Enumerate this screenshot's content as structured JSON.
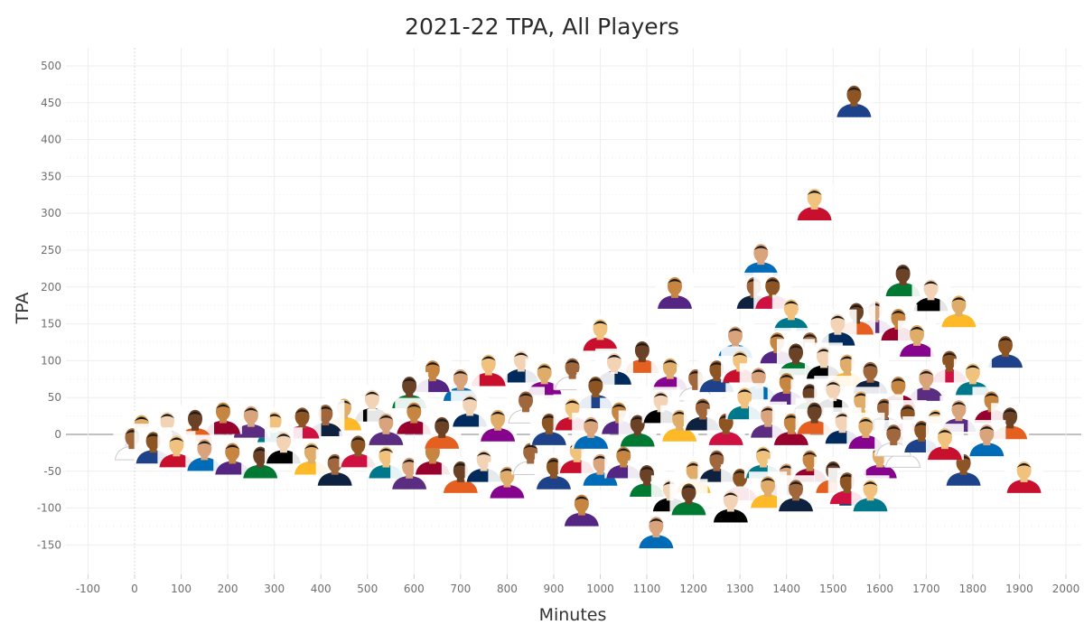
{
  "chart_data": {
    "type": "scatter",
    "title": "2021-22 TPA, All Players",
    "xlabel": "Minutes",
    "ylabel": "TPA",
    "xlim": [
      -100,
      2000
    ],
    "ylim": [
      -150,
      500
    ],
    "x_ticks": [
      "-100",
      "0",
      "100",
      "200",
      "300",
      "400",
      "500",
      "600",
      "700",
      "800",
      "900",
      "1000",
      "1100",
      "1200",
      "1300",
      "1400",
      "1500",
      "1600",
      "1700",
      "1800",
      "1900",
      "2000"
    ],
    "y_ticks": [
      "500",
      "450",
      "400",
      "350",
      "300",
      "250",
      "200",
      "150",
      "100",
      "50",
      "0",
      "-50",
      "-100",
      "-150"
    ],
    "grid": true,
    "legend": "none",
    "marker": "player-headshot",
    "points": [
      {
        "x": 1545,
        "y": 455
      },
      {
        "x": 1460,
        "y": 315
      },
      {
        "x": 1345,
        "y": 240
      },
      {
        "x": 1160,
        "y": 195
      },
      {
        "x": 1650,
        "y": 212
      },
      {
        "x": 1710,
        "y": 192
      },
      {
        "x": 1770,
        "y": 170
      },
      {
        "x": 1330,
        "y": 195
      },
      {
        "x": 1370,
        "y": 195
      },
      {
        "x": 1410,
        "y": 165
      },
      {
        "x": 1590,
        "y": 162
      },
      {
        "x": 1640,
        "y": 152
      },
      {
        "x": 1550,
        "y": 160
      },
      {
        "x": 1510,
        "y": 145
      },
      {
        "x": 1680,
        "y": 130
      },
      {
        "x": 1450,
        "y": 120
      },
      {
        "x": 1870,
        "y": 115
      },
      {
        "x": 1000,
        "y": 138
      },
      {
        "x": 1290,
        "y": 128
      },
      {
        "x": 1380,
        "y": 120
      },
      {
        "x": 1420,
        "y": 105
      },
      {
        "x": 1480,
        "y": 100
      },
      {
        "x": 1530,
        "y": 90
      },
      {
        "x": 1580,
        "y": 80
      },
      {
        "x": 1750,
        "y": 95
      },
      {
        "x": 1800,
        "y": 78
      },
      {
        "x": 1700,
        "y": 70
      },
      {
        "x": 1640,
        "y": 60
      },
      {
        "x": 1090,
        "y": 108
      },
      {
        "x": 1030,
        "y": 92
      },
      {
        "x": 1150,
        "y": 85
      },
      {
        "x": 1205,
        "y": 70
      },
      {
        "x": 1250,
        "y": 82
      },
      {
        "x": 1300,
        "y": 95
      },
      {
        "x": 1340,
        "y": 72
      },
      {
        "x": 1400,
        "y": 65
      },
      {
        "x": 1450,
        "y": 50
      },
      {
        "x": 1500,
        "y": 55
      },
      {
        "x": 1560,
        "y": 40
      },
      {
        "x": 1610,
        "y": 30
      },
      {
        "x": 1660,
        "y": 22
      },
      {
        "x": 1720,
        "y": 15
      },
      {
        "x": 1770,
        "y": 28
      },
      {
        "x": 1840,
        "y": 40
      },
      {
        "x": 1880,
        "y": 18
      },
      {
        "x": 830,
        "y": 95
      },
      {
        "x": 880,
        "y": 78
      },
      {
        "x": 940,
        "y": 85
      },
      {
        "x": 990,
        "y": 60
      },
      {
        "x": 760,
        "y": 90
      },
      {
        "x": 700,
        "y": 70
      },
      {
        "x": 640,
        "y": 82
      },
      {
        "x": 590,
        "y": 60
      },
      {
        "x": 510,
        "y": 42
      },
      {
        "x": 450,
        "y": 30
      },
      {
        "x": 410,
        "y": 22
      },
      {
        "x": 360,
        "y": 18
      },
      {
        "x": 300,
        "y": 12
      },
      {
        "x": 250,
        "y": 20
      },
      {
        "x": 190,
        "y": 25
      },
      {
        "x": 130,
        "y": 15
      },
      {
        "x": 70,
        "y": 12
      },
      {
        "x": 15,
        "y": 8
      },
      {
        "x": -5,
        "y": -10
      },
      {
        "x": 40,
        "y": -15
      },
      {
        "x": 90,
        "y": -20
      },
      {
        "x": 150,
        "y": -25
      },
      {
        "x": 210,
        "y": -30
      },
      {
        "x": 270,
        "y": -35
      },
      {
        "x": 320,
        "y": -15
      },
      {
        "x": 380,
        "y": -30
      },
      {
        "x": 430,
        "y": -45
      },
      {
        "x": 480,
        "y": -20
      },
      {
        "x": 540,
        "y": -35
      },
      {
        "x": 590,
        "y": -50
      },
      {
        "x": 640,
        "y": -30
      },
      {
        "x": 700,
        "y": -55
      },
      {
        "x": 750,
        "y": -40
      },
      {
        "x": 800,
        "y": -62
      },
      {
        "x": 850,
        "y": -30
      },
      {
        "x": 900,
        "y": -50
      },
      {
        "x": 950,
        "y": -28
      },
      {
        "x": 1000,
        "y": -45
      },
      {
        "x": 1050,
        "y": -35
      },
      {
        "x": 1100,
        "y": -60
      },
      {
        "x": 1150,
        "y": -80
      },
      {
        "x": 1200,
        "y": -55
      },
      {
        "x": 1250,
        "y": -40
      },
      {
        "x": 1300,
        "y": -65
      },
      {
        "x": 1350,
        "y": -35
      },
      {
        "x": 1400,
        "y": -58
      },
      {
        "x": 1450,
        "y": -40
      },
      {
        "x": 1500,
        "y": -55
      },
      {
        "x": 1550,
        "y": -72
      },
      {
        "x": 1600,
        "y": -35
      },
      {
        "x": 1650,
        "y": -20
      },
      {
        "x": 1780,
        "y": -45
      },
      {
        "x": 1910,
        "y": -55
      },
      {
        "x": 1120,
        "y": -130
      },
      {
        "x": 960,
        "y": -100
      },
      {
        "x": 1190,
        "y": -85
      },
      {
        "x": 1280,
        "y": -95
      },
      {
        "x": 1360,
        "y": -75
      },
      {
        "x": 1420,
        "y": -80
      },
      {
        "x": 1530,
        "y": -70
      },
      {
        "x": 1580,
        "y": -80
      },
      {
        "x": 540,
        "y": 10
      },
      {
        "x": 600,
        "y": 25
      },
      {
        "x": 660,
        "y": 5
      },
      {
        "x": 720,
        "y": 35
      },
      {
        "x": 780,
        "y": 15
      },
      {
        "x": 840,
        "y": 40
      },
      {
        "x": 890,
        "y": 10
      },
      {
        "x": 940,
        "y": 30
      },
      {
        "x": 980,
        "y": 5
      },
      {
        "x": 1040,
        "y": 25
      },
      {
        "x": 1080,
        "y": 8
      },
      {
        "x": 1130,
        "y": 40
      },
      {
        "x": 1170,
        "y": 15
      },
      {
        "x": 1220,
        "y": 30
      },
      {
        "x": 1270,
        "y": 10
      },
      {
        "x": 1310,
        "y": 45
      },
      {
        "x": 1360,
        "y": 20
      },
      {
        "x": 1410,
        "y": 10
      },
      {
        "x": 1460,
        "y": 25
      },
      {
        "x": 1520,
        "y": 12
      },
      {
        "x": 1570,
        "y": 5
      },
      {
        "x": 1630,
        "y": -5
      },
      {
        "x": 1690,
        "y": 0
      },
      {
        "x": 1740,
        "y": -10
      },
      {
        "x": 1830,
        "y": -5
      }
    ]
  }
}
